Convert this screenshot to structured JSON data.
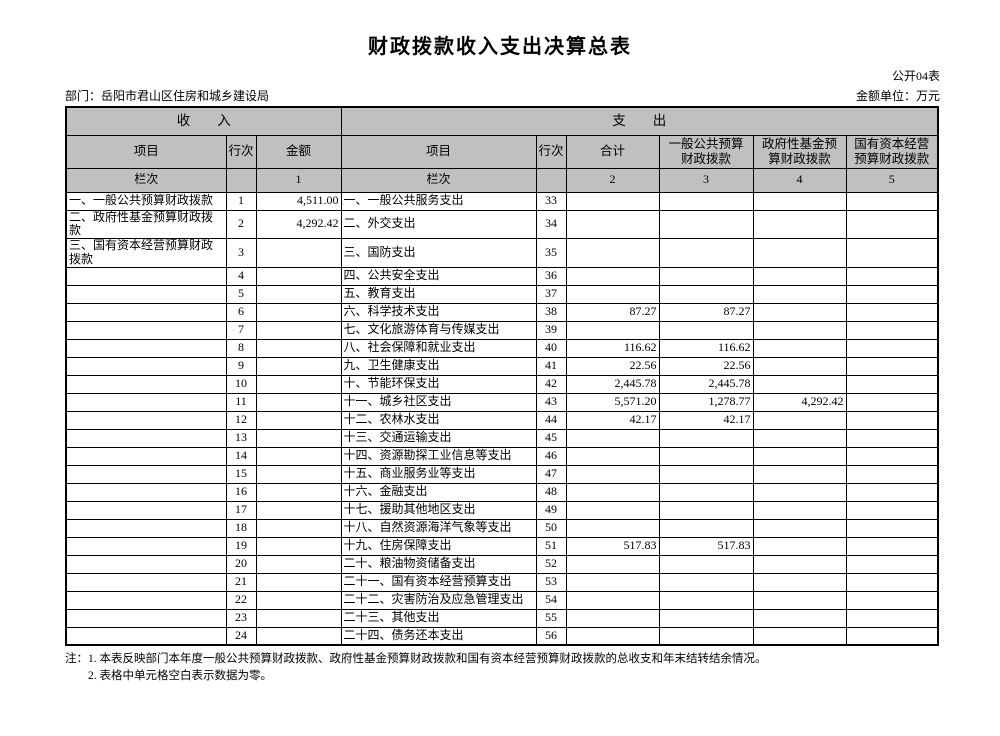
{
  "page": {
    "title": "财政拨款收入支出决算总表",
    "table_code": "公开04表",
    "department_label": "部门：岳阳市君山区住房和城乡建设局",
    "unit_label": "金额单位：万元"
  },
  "table": {
    "income_header": "收　　入",
    "expenditure_header": "支　　出",
    "columns": {
      "income_item": "项目",
      "income_line": "行次",
      "income_amount": "金额",
      "exp_item": "项目",
      "exp_line": "行次",
      "exp_total": "合计",
      "exp_general": "一般公共预算\n财政拨款",
      "exp_gov_fund": "政府性基金预\n算财政拨款",
      "exp_state_capital": "国有资本经营\n预算财政拨款"
    },
    "index_row": {
      "income_label": "栏次",
      "income_amount_index": "1",
      "exp_label": "栏次",
      "indexes": [
        "2",
        "3",
        "4",
        "5"
      ]
    },
    "rows": [
      {
        "income_item": "一、一般公共预算财政拨款",
        "income_line": "1",
        "income_amount": "4,511.00",
        "exp_item": "一、一般公共服务支出",
        "exp_line": "33",
        "total": "",
        "general": "",
        "gov_fund": "",
        "state_capital": ""
      },
      {
        "income_item": "二、政府性基金预算财政拨款",
        "income_line": "2",
        "income_amount": "4,292.42",
        "exp_item": "二、外交支出",
        "exp_line": "34",
        "total": "",
        "general": "",
        "gov_fund": "",
        "state_capital": ""
      },
      {
        "income_item": "三、国有资本经营预算财政拨款",
        "income_line": "3",
        "income_amount": "",
        "exp_item": "三、国防支出",
        "exp_line": "35",
        "total": "",
        "general": "",
        "gov_fund": "",
        "state_capital": "",
        "tall": true
      },
      {
        "income_item": "",
        "income_line": "4",
        "income_amount": "",
        "exp_item": "四、公共安全支出",
        "exp_line": "36",
        "total": "",
        "general": "",
        "gov_fund": "",
        "state_capital": ""
      },
      {
        "income_item": "",
        "income_line": "5",
        "income_amount": "",
        "exp_item": "五、教育支出",
        "exp_line": "37",
        "total": "",
        "general": "",
        "gov_fund": "",
        "state_capital": ""
      },
      {
        "income_item": "",
        "income_line": "6",
        "income_amount": "",
        "exp_item": "六、科学技术支出",
        "exp_line": "38",
        "total": "87.27",
        "general": "87.27",
        "gov_fund": "",
        "state_capital": ""
      },
      {
        "income_item": "",
        "income_line": "7",
        "income_amount": "",
        "exp_item": "七、文化旅游体育与传媒支出",
        "exp_line": "39",
        "total": "",
        "general": "",
        "gov_fund": "",
        "state_capital": ""
      },
      {
        "income_item": "",
        "income_line": "8",
        "income_amount": "",
        "exp_item": "八、社会保障和就业支出",
        "exp_line": "40",
        "total": "116.62",
        "general": "116.62",
        "gov_fund": "",
        "state_capital": ""
      },
      {
        "income_item": "",
        "income_line": "9",
        "income_amount": "",
        "exp_item": "九、卫生健康支出",
        "exp_line": "41",
        "total": "22.56",
        "general": "22.56",
        "gov_fund": "",
        "state_capital": ""
      },
      {
        "income_item": "",
        "income_line": "10",
        "income_amount": "",
        "exp_item": "十、节能环保支出",
        "exp_line": "42",
        "total": "2,445.78",
        "general": "2,445.78",
        "gov_fund": "",
        "state_capital": ""
      },
      {
        "income_item": "",
        "income_line": "11",
        "income_amount": "",
        "exp_item": "十一、城乡社区支出",
        "exp_line": "43",
        "total": "5,571.20",
        "general": "1,278.77",
        "gov_fund": "4,292.42",
        "state_capital": ""
      },
      {
        "income_item": "",
        "income_line": "12",
        "income_amount": "",
        "exp_item": "十二、农林水支出",
        "exp_line": "44",
        "total": "42.17",
        "general": "42.17",
        "gov_fund": "",
        "state_capital": ""
      },
      {
        "income_item": "",
        "income_line": "13",
        "income_amount": "",
        "exp_item": "十三、交通运输支出",
        "exp_line": "45",
        "total": "",
        "general": "",
        "gov_fund": "",
        "state_capital": ""
      },
      {
        "income_item": "",
        "income_line": "14",
        "income_amount": "",
        "exp_item": "十四、资源勘探工业信息等支出",
        "exp_line": "46",
        "total": "",
        "general": "",
        "gov_fund": "",
        "state_capital": ""
      },
      {
        "income_item": "",
        "income_line": "15",
        "income_amount": "",
        "exp_item": "十五、商业服务业等支出",
        "exp_line": "47",
        "total": "",
        "general": "",
        "gov_fund": "",
        "state_capital": ""
      },
      {
        "income_item": "",
        "income_line": "16",
        "income_amount": "",
        "exp_item": "十六、金融支出",
        "exp_line": "48",
        "total": "",
        "general": "",
        "gov_fund": "",
        "state_capital": ""
      },
      {
        "income_item": "",
        "income_line": "17",
        "income_amount": "",
        "exp_item": "十七、援助其他地区支出",
        "exp_line": "49",
        "total": "",
        "general": "",
        "gov_fund": "",
        "state_capital": ""
      },
      {
        "income_item": "",
        "income_line": "18",
        "income_amount": "",
        "exp_item": "十八、自然资源海洋气象等支出",
        "exp_line": "50",
        "total": "",
        "general": "",
        "gov_fund": "",
        "state_capital": ""
      },
      {
        "income_item": "",
        "income_line": "19",
        "income_amount": "",
        "exp_item": "十九、住房保障支出",
        "exp_line": "51",
        "total": "517.83",
        "general": "517.83",
        "gov_fund": "",
        "state_capital": ""
      },
      {
        "income_item": "",
        "income_line": "20",
        "income_amount": "",
        "exp_item": "二十、粮油物资储备支出",
        "exp_line": "52",
        "total": "",
        "general": "",
        "gov_fund": "",
        "state_capital": ""
      },
      {
        "income_item": "",
        "income_line": "21",
        "income_amount": "",
        "exp_item": "二十一、国有资本经营预算支出",
        "exp_line": "53",
        "total": "",
        "general": "",
        "gov_fund": "",
        "state_capital": ""
      },
      {
        "income_item": "",
        "income_line": "22",
        "income_amount": "",
        "exp_item": "二十二、灾害防治及应急管理支出",
        "exp_line": "54",
        "total": "",
        "general": "",
        "gov_fund": "",
        "state_capital": ""
      },
      {
        "income_item": "",
        "income_line": "23",
        "income_amount": "",
        "exp_item": "二十三、其他支出",
        "exp_line": "55",
        "total": "",
        "general": "",
        "gov_fund": "",
        "state_capital": ""
      },
      {
        "income_item": "",
        "income_line": "24",
        "income_amount": "",
        "exp_item": "二十四、债务还本支出",
        "exp_line": "56",
        "total": "",
        "general": "",
        "gov_fund": "",
        "state_capital": ""
      }
    ]
  },
  "notes": [
    "注：1. 本表反映部门本年度一般公共预算财政拨款、政府性基金预算财政拨款和国有资本经营预算财政拨款的总收支和年末结转结余情况。",
    "2. 表格中单元格空白表示数据为零。"
  ],
  "colors": {
    "header_bg": "#c0c0c0",
    "border": "#000000",
    "page_bg": "#ffffff"
  }
}
